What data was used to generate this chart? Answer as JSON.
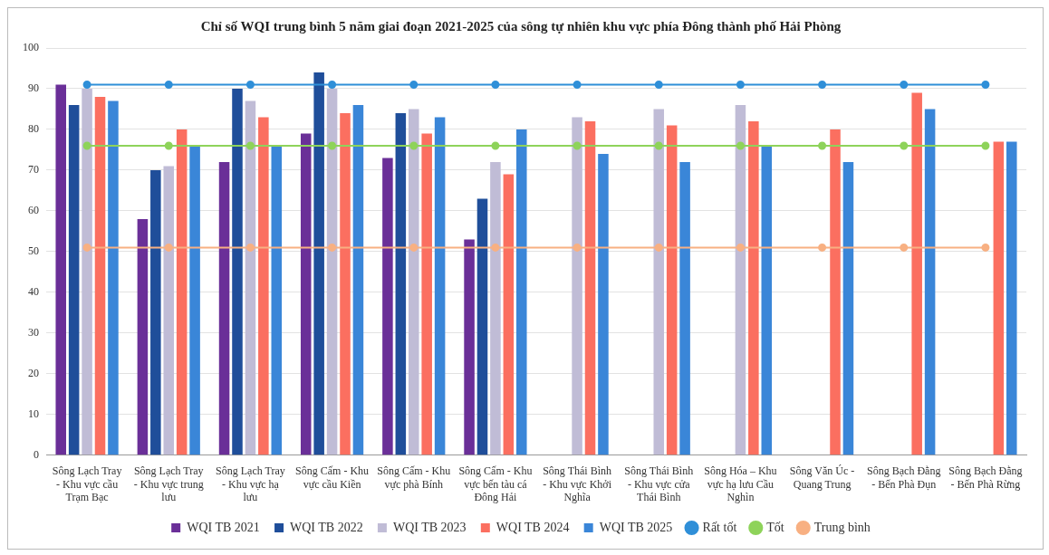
{
  "chart_data": {
    "type": "bar",
    "title": "Chỉ số WQI trung bình 5 năm giai đoạn 2021-2025 của sông tự nhiên khu vực phía Đông thành phố Hải Phòng",
    "categories": [
      "Sông Lạch Tray - Khu vực cầu Trạm Bạc",
      "Sông Lạch Tray - Khu vực trung lưu",
      "Sông Lạch Tray - Khu vực hạ lưu",
      "Sông Cấm - Khu vực cầu Kiền",
      "Sông Cấm - Khu vực phà Bính",
      "Sông Cấm - Khu vực bến tàu cá Đông Hải",
      "Sông Thái Bình - Khu vực Khởi Nghĩa",
      "Sông Thái Bình - Khu vực cửa Thái Bình",
      "Sông Hóa – Khu vực hạ lưu Cầu Nghìn",
      "Sông Văn Úc - Quang Trung",
      "Sông Bạch Đằng - Bến Phà Đụn",
      "Sông Bạch Đằng - Bến Phà Rừng"
    ],
    "series": [
      {
        "name": "WQI TB 2021",
        "color": "#6a2f98",
        "values": [
          91,
          58,
          72,
          79,
          73,
          53,
          null,
          null,
          null,
          null,
          null,
          null
        ]
      },
      {
        "name": "WQI TB 2022",
        "color": "#1f4e9a",
        "values": [
          86,
          70,
          90,
          94,
          84,
          63,
          null,
          null,
          null,
          null,
          null,
          null
        ]
      },
      {
        "name": "WQI TB 2023",
        "color": "#c0bcd6",
        "values": [
          90,
          71,
          87,
          90,
          85,
          72,
          83,
          85,
          86,
          null,
          null,
          null
        ]
      },
      {
        "name": "WQI TB 2024",
        "color": "#fb6f60",
        "values": [
          88,
          80,
          83,
          84,
          79,
          69,
          82,
          81,
          82,
          80,
          89,
          77
        ]
      },
      {
        "name": "WQI TB 2025",
        "color": "#3a86d8",
        "values": [
          87,
          76,
          76,
          86,
          83,
          80,
          74,
          72,
          76,
          72,
          85,
          77
        ]
      },
      {
        "name": "Rất tốt",
        "type": "line",
        "color": "#2f8fd8",
        "values": [
          91,
          91,
          91,
          91,
          91,
          91,
          91,
          91,
          91,
          91,
          91,
          91
        ]
      },
      {
        "name": "Tốt",
        "type": "line",
        "color": "#8ed35a",
        "values": [
          76,
          76,
          76,
          76,
          76,
          76,
          76,
          76,
          76,
          76,
          76,
          76
        ]
      },
      {
        "name": "Trung bình",
        "type": "line",
        "color": "#f8b082",
        "values": [
          51,
          51,
          51,
          51,
          51,
          51,
          51,
          51,
          51,
          51,
          51,
          51
        ]
      }
    ],
    "ylim": [
      0,
      100
    ],
    "yticks": [
      0,
      10,
      20,
      30,
      40,
      50,
      60,
      70,
      80,
      90,
      100
    ],
    "grid": "y",
    "legend": "bottom",
    "marker": "circle"
  }
}
